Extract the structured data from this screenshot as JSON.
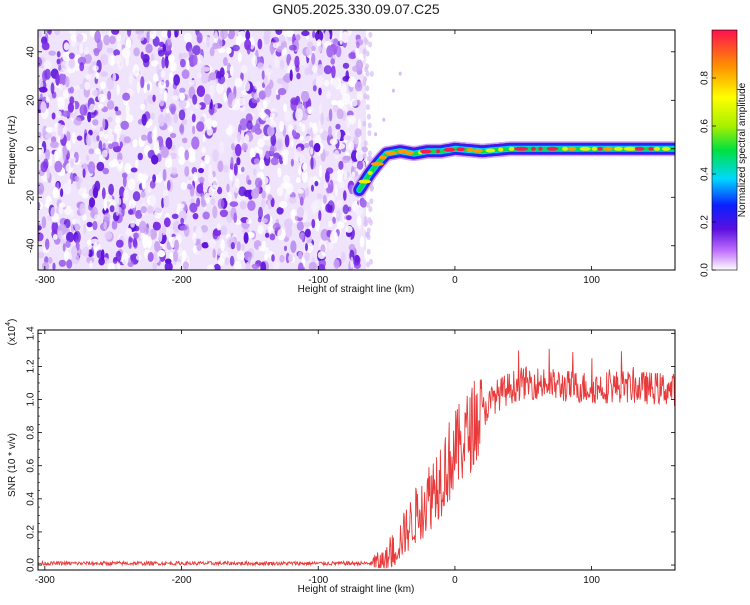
{
  "title": "GN05.2025.330.09.07.C25",
  "chart_data": [
    {
      "type": "heatmap",
      "panel": "top",
      "xlabel": "Height of straight line (km)",
      "ylabel": "Frequency (Hz)",
      "xlim": [
        -305,
        161
      ],
      "ylim": [
        -50,
        49
      ],
      "xticks": [
        -300,
        -200,
        -100,
        0,
        100
      ],
      "yticks": [
        -40,
        -20,
        0,
        20,
        40
      ],
      "noise_region_x": [
        -305,
        -65
      ],
      "ridge": {
        "x": [
          -70,
          -62,
          -55,
          -50,
          -40,
          -30,
          -20,
          -10,
          0,
          20,
          40,
          60,
          80,
          100,
          120,
          140,
          161
        ],
        "y": [
          -17,
          -10,
          -5,
          -2,
          -1,
          -2,
          -1,
          -1,
          0,
          -1,
          0,
          0,
          0,
          0,
          0,
          0,
          0
        ]
      },
      "colorbar": {
        "label": "Normalized spectral amplitude",
        "range": [
          0,
          1
        ],
        "ticks": [
          0.0,
          0.2,
          0.4,
          0.6,
          0.8
        ]
      }
    },
    {
      "type": "line",
      "panel": "bottom",
      "xlabel": "Height of straight line (km)",
      "ylabel": "SNR (10 * v/v)",
      "scale_label": "(x10",
      "scale_exp": "4",
      "xlim": [
        -305,
        161
      ],
      "ylim": [
        -0.03,
        1.42
      ],
      "xticks": [
        -300,
        -200,
        -100,
        0,
        100
      ],
      "yticks": [
        0.0,
        0.2,
        0.4,
        0.6,
        0.8,
        1.0,
        1.2,
        1.4
      ],
      "color": "#e83a3a",
      "trend": {
        "x": [
          -305,
          -60,
          -50,
          -45,
          -40,
          -30,
          -20,
          -10,
          0,
          10,
          20,
          30,
          40,
          50,
          60,
          80,
          100,
          120,
          140,
          161
        ],
        "y": [
          0.01,
          0.01,
          0.03,
          0.08,
          0.15,
          0.28,
          0.4,
          0.55,
          0.68,
          0.8,
          0.92,
          1.02,
          1.07,
          1.1,
          1.1,
          1.08,
          1.07,
          1.08,
          1.07,
          1.06
        ]
      }
    }
  ]
}
